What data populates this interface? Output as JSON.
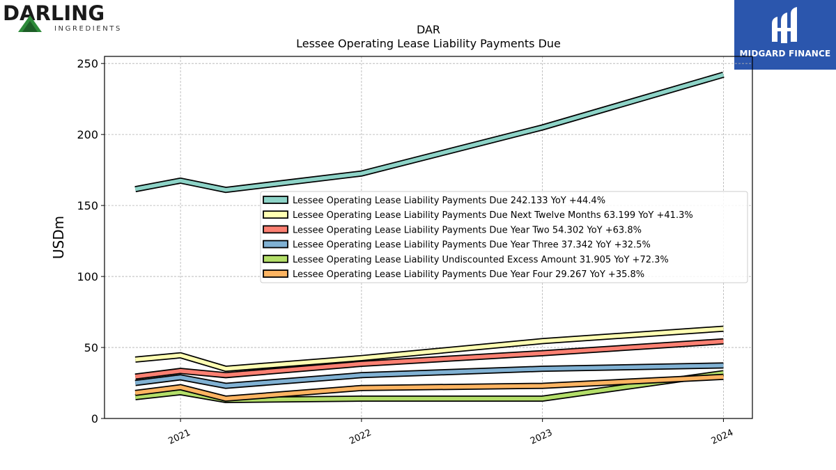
{
  "branding": {
    "company_wordmark": "DARLING",
    "company_sub": "INGREDIENTS",
    "publisher": "MIDGARD FINANCE"
  },
  "chart_data": {
    "type": "line",
    "title": "DAR",
    "subtitle": "Lessee Operating Lease Liability Payments Due",
    "ylabel": "USDm",
    "xlabel": "",
    "ylim": [
      0,
      255
    ],
    "yticks": [
      0,
      50,
      100,
      150,
      200,
      250
    ],
    "xticks": [
      "2021",
      "2022",
      "2023",
      "2024"
    ],
    "xtick_values": [
      2021.0,
      2022.0,
      2023.0,
      2024.0
    ],
    "xlim": [
      2020.58,
      2024.16
    ],
    "grid": true,
    "legend_position": "center-right",
    "x": [
      2020.75,
      2021.0,
      2021.25,
      2022.0,
      2023.0,
      2024.0
    ],
    "series": [
      {
        "name": "Lessee Operating Lease Liability Payments Due",
        "legend": "Lessee Operating Lease Liability Payments Due  242.133 YoY +44.4%",
        "color": "#8dd3c7",
        "values": [
          161.5,
          167.5,
          161,
          172.5,
          205,
          242.1
        ]
      },
      {
        "name": "Lessee Operating Lease Liability Payments Due Next Twelve Months",
        "legend": "Lessee Operating Lease Liability Payments Due Next Twelve Months  63.199 YoY +41.3%",
        "color": "#ffffb3",
        "values": [
          41.5,
          44.5,
          35,
          42.5,
          54.5,
          63.2
        ]
      },
      {
        "name": "Lessee Operating Lease Liability Payments Due Year Two",
        "legend": "Lessee Operating Lease Liability Payments Due Year Two  54.302 YoY +63.8%",
        "color": "#fb8072",
        "values": [
          29.5,
          33.5,
          30.5,
          38.5,
          46,
          54.3
        ]
      },
      {
        "name": "Lessee Operating Lease Liability Payments Due Year Three",
        "legend": "Lessee Operating Lease Liability Payments Due Year Three  37.342 YoY +32.5%",
        "color": "#80b1d3",
        "values": [
          25,
          29,
          23,
          30.5,
          35,
          37.3
        ]
      },
      {
        "name": "Lessee Operating Lease Liability Undiscounted Excess Amount",
        "legend": "Lessee Operating Lease Liability Undiscounted Excess Amount  31.905 YoY +72.3%",
        "color": "#b3de69",
        "values": [
          15,
          18.5,
          13,
          14,
          14,
          31.9
        ]
      },
      {
        "name": "Lessee Operating Lease Liability Payments Due Year Four",
        "legend": "Lessee Operating Lease Liability Payments Due Year Four  29.267 YoY +35.8%",
        "color": "#fdb462",
        "values": [
          18,
          22,
          14,
          21.5,
          23,
          29.3
        ]
      }
    ]
  }
}
